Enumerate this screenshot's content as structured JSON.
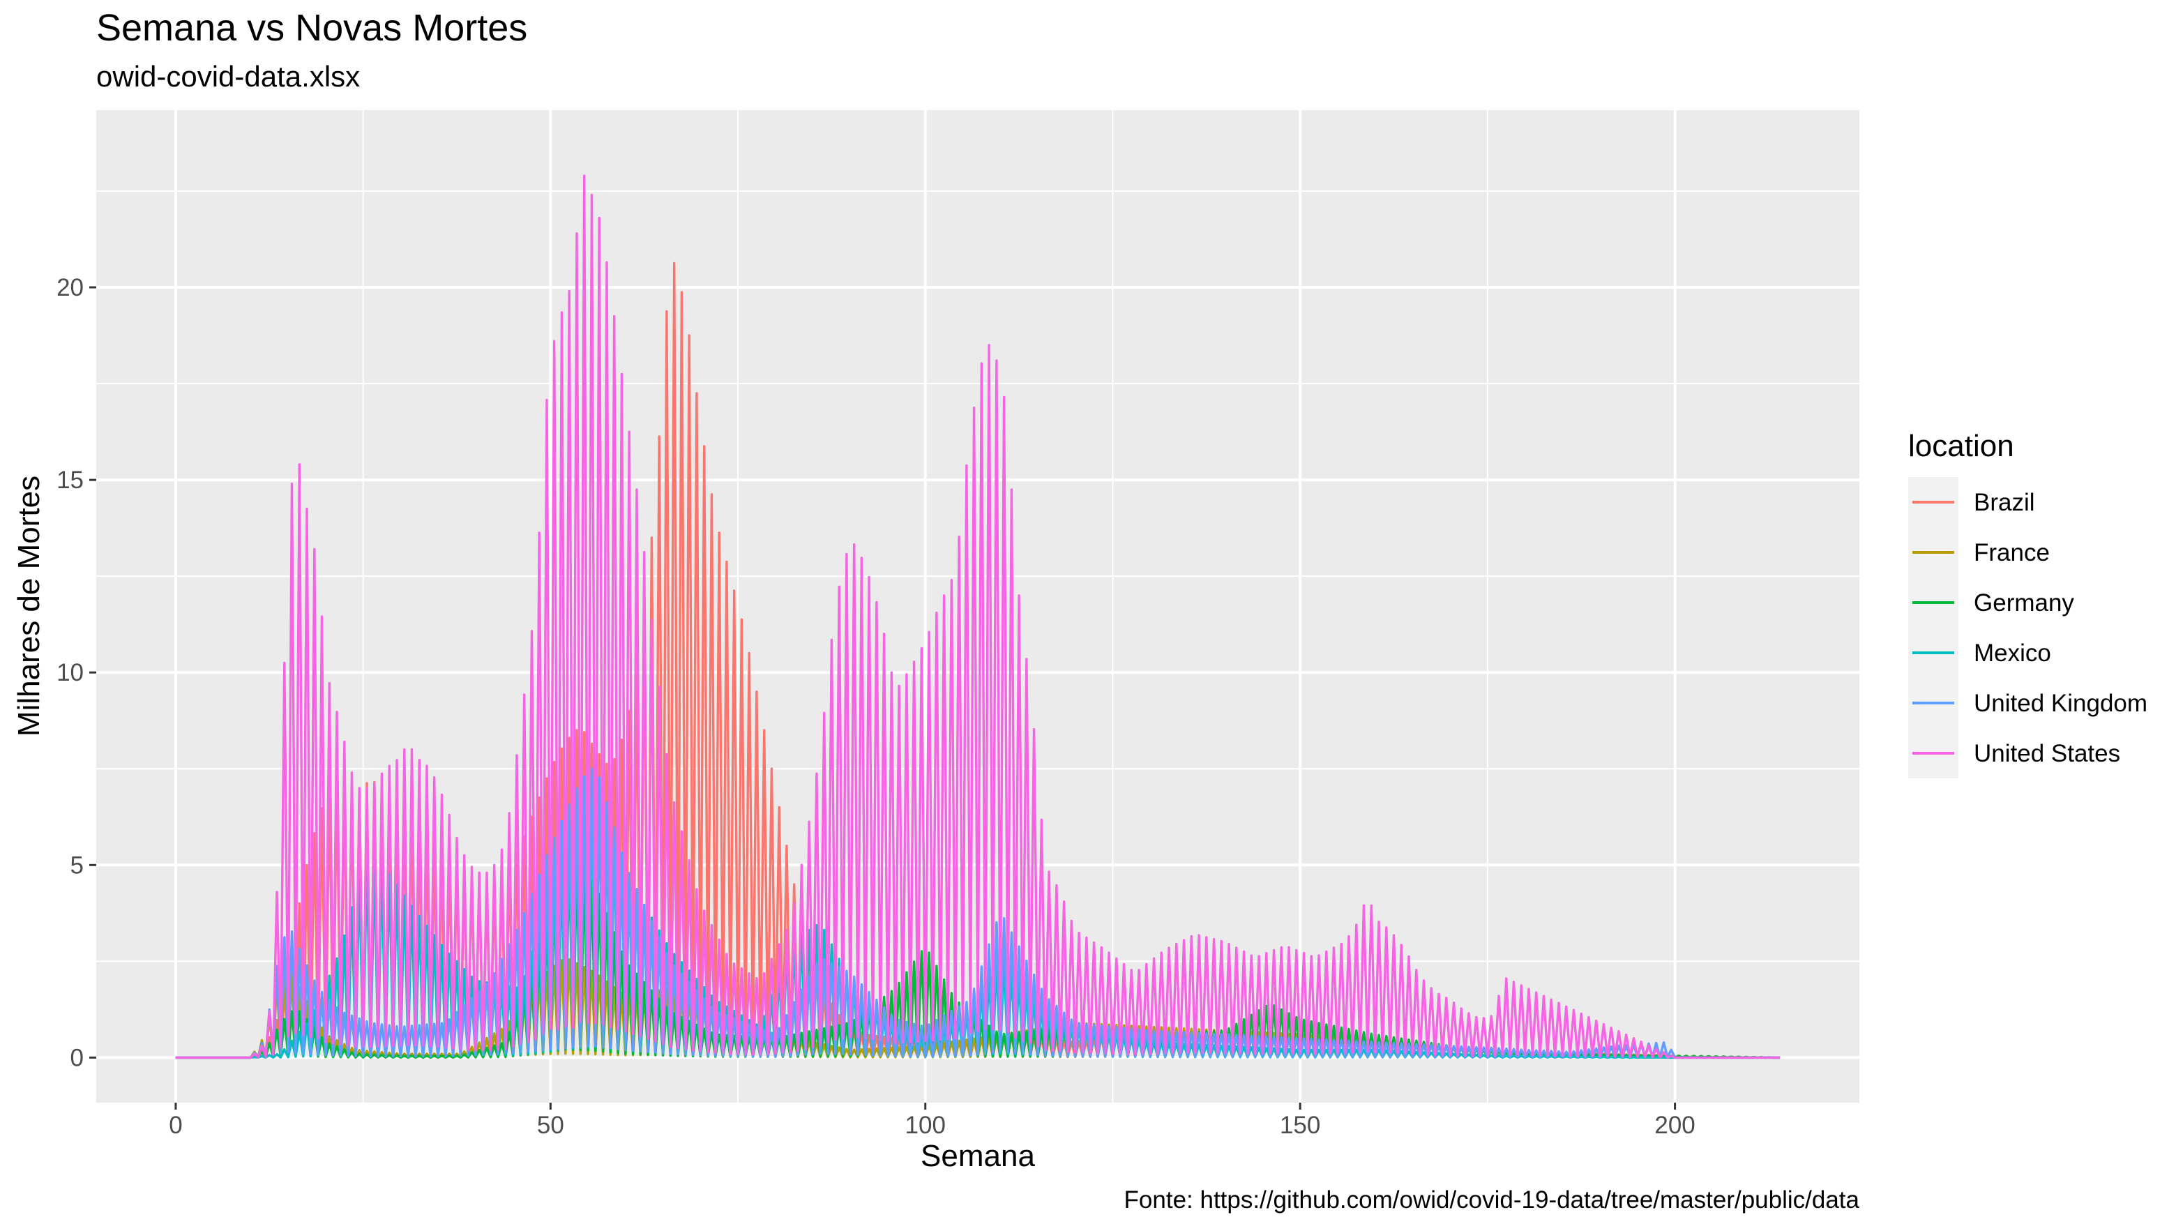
{
  "chart_data": {
    "type": "line",
    "title": "Semana vs Novas Mortes",
    "subtitle": "owid-covid-data.xlsx",
    "xlabel": "Semana",
    "ylabel": "Milhares de Mortes",
    "caption": "Fonte: https://github.com/owid/covid-19-data/tree/master/public/data",
    "xlim": [
      -10.6,
      224.6
    ],
    "ylim": [
      -1.17,
      24.6
    ],
    "x_ticks": [
      0,
      50,
      100,
      150,
      200
    ],
    "y_ticks": [
      0,
      5,
      10,
      15,
      20
    ],
    "x_tick_labels": [
      "0",
      "50",
      "100",
      "150",
      "200"
    ],
    "y_tick_labels": [
      "0",
      "5",
      "10",
      "15",
      "20"
    ],
    "grid": true,
    "legend": {
      "title": "location",
      "position": "right"
    },
    "sample_points_per_week": 2,
    "series": [
      {
        "name": "Brazil",
        "color": "#F8766D",
        "x": [
          0,
          10,
          12,
          14,
          16,
          18,
          20,
          22,
          24,
          26,
          28,
          30,
          32,
          34,
          36,
          38,
          40,
          42,
          44,
          46,
          48,
          50,
          52,
          54,
          56,
          58,
          60,
          62,
          64,
          66,
          68,
          70,
          72,
          74,
          76,
          78,
          80,
          82,
          84,
          86,
          88,
          90,
          92,
          96,
          100,
          104,
          108,
          112,
          120,
          130,
          140,
          150,
          160,
          170,
          180,
          190,
          200,
          214
        ],
        "peaks": [
          0,
          0,
          0.3,
          1.2,
          3.5,
          5.5,
          6.8,
          7.1,
          6.9,
          7.2,
          7.0,
          6.5,
          6.0,
          5.4,
          5.0,
          4.8,
          4.6,
          4.3,
          4.8,
          5.5,
          6.5,
          7.5,
          8.2,
          8.6,
          8.0,
          7.5,
          8.5,
          10.5,
          14.5,
          21.0,
          19.5,
          16.5,
          14.0,
          12.5,
          11.0,
          9.0,
          7.0,
          5.0,
          3.0,
          2.0,
          1.2,
          0.8,
          0.6,
          0.5,
          0.5,
          0.4,
          0.5,
          0.6,
          0.4,
          0.8,
          0.6,
          0.5,
          0.6,
          0.3,
          0.15,
          0.1,
          0.05,
          0
        ]
      },
      {
        "name": "France",
        "color": "#B79F00",
        "x": [
          0,
          10,
          12,
          14,
          16,
          18,
          20,
          24,
          30,
          38,
          44,
          48,
          52,
          56,
          60,
          66,
          72,
          80,
          90,
          100,
          110,
          120,
          130,
          140,
          150,
          160,
          170,
          180,
          200,
          214
        ],
        "peaks": [
          0,
          0,
          0.6,
          2.4,
          2.0,
          1.3,
          0.6,
          0.2,
          0.1,
          0.1,
          0.8,
          2.0,
          2.6,
          2.2,
          1.6,
          1.8,
          1.3,
          0.6,
          0.2,
          0.3,
          0.6,
          0.9,
          0.8,
          0.7,
          0.6,
          0.4,
          0.3,
          0.1,
          0.05,
          0
        ]
      },
      {
        "name": "Germany",
        "color": "#00BA38",
        "x": [
          0,
          10,
          12,
          14,
          16,
          18,
          20,
          24,
          30,
          38,
          44,
          48,
          52,
          56,
          60,
          66,
          72,
          80,
          90,
          96,
          100,
          104,
          110,
          120,
          130,
          140,
          146,
          150,
          160,
          170,
          180,
          200,
          214
        ],
        "peaks": [
          0,
          0,
          0.2,
          0.9,
          1.3,
          0.9,
          0.4,
          0.1,
          0.05,
          0.05,
          0.4,
          2.5,
          5.3,
          4.5,
          2.5,
          1.2,
          0.6,
          0.5,
          0.9,
          1.8,
          2.9,
          1.5,
          0.6,
          0.8,
          0.6,
          0.7,
          1.4,
          1.0,
          0.6,
          0.3,
          0.1,
          0.05,
          0
        ]
      },
      {
        "name": "Mexico",
        "color": "#00BFC4",
        "x": [
          0,
          10,
          14,
          18,
          22,
          25,
          28,
          32,
          36,
          40,
          46,
          52,
          56,
          60,
          66,
          72,
          78,
          82,
          86,
          90,
          96,
          100,
          106,
          110,
          116,
          120,
          130,
          140,
          150,
          160,
          170,
          176,
          200,
          214
        ],
        "peaks": [
          0,
          0,
          0.1,
          1.0,
          2.8,
          5.0,
          4.9,
          3.8,
          2.8,
          2.0,
          1.8,
          5.6,
          7.0,
          4.8,
          2.8,
          1.5,
          0.8,
          3.0,
          3.5,
          2.0,
          0.8,
          0.5,
          1.2,
          2.6,
          1.2,
          0.8,
          0.4,
          0.3,
          0.2,
          0.2,
          0.1,
          0.05,
          0,
          0
        ]
      },
      {
        "name": "United Kingdom",
        "color": "#619CFF",
        "x": [
          0,
          10,
          12,
          13,
          15,
          17,
          19,
          22,
          26,
          30,
          36,
          42,
          46,
          50,
          54,
          56,
          60,
          66,
          72,
          80,
          86,
          90,
          96,
          100,
          106,
          110,
          116,
          120,
          130,
          140,
          150,
          160,
          170,
          176,
          180,
          186,
          192,
          199,
          200,
          214
        ],
        "peaks": [
          0,
          0,
          0.5,
          2.0,
          3.5,
          2.6,
          1.8,
          1.2,
          0.9,
          0.8,
          0.9,
          2.0,
          3.5,
          5.5,
          7.2,
          7.6,
          5.0,
          2.5,
          1.2,
          0.6,
          2.6,
          2.2,
          1.0,
          0.8,
          1.5,
          3.8,
          1.6,
          0.9,
          0.7,
          0.6,
          0.5,
          0.4,
          0.3,
          0.25,
          0.2,
          0.15,
          0.3,
          0.4,
          0,
          0
        ]
      },
      {
        "name": "United States",
        "color": "#F564E3",
        "x": [
          0,
          10,
          12,
          13,
          14,
          15,
          16,
          17,
          18,
          19,
          20,
          22,
          24,
          26,
          28,
          30,
          31,
          32,
          34,
          36,
          38,
          40,
          42,
          44,
          46,
          48,
          50,
          51,
          52,
          53,
          54,
          55,
          56,
          57,
          58,
          60,
          62,
          64,
          66,
          70,
          74,
          78,
          82,
          84,
          86,
          88,
          90,
          92,
          94,
          96,
          98,
          100,
          102,
          104,
          106,
          108,
          109,
          110,
          111,
          112,
          113,
          114,
          116,
          118,
          120,
          124,
          128,
          132,
          136,
          140,
          144,
          148,
          152,
          156,
          158,
          159,
          160,
          162,
          164,
          166,
          168,
          170,
          172,
          174,
          176,
          177,
          200,
          214
        ],
        "peaks": [
          0,
          0,
          0.4,
          2.0,
          6.6,
          13.9,
          15.9,
          14.9,
          13.6,
          12.8,
          10.1,
          8.6,
          7.0,
          7.0,
          7.5,
          7.8,
          8.2,
          7.8,
          7.5,
          6.6,
          5.4,
          4.8,
          4.8,
          5.6,
          8.6,
          11.9,
          18.8,
          18.4,
          20.3,
          19.5,
          23.3,
          22.5,
          22.3,
          21.3,
          20.0,
          17.0,
          14.0,
          10.5,
          7.0,
          4.0,
          2.5,
          2.0,
          3.5,
          5.5,
          8.0,
          11.8,
          13.5,
          12.8,
          11.5,
          9.5,
          10.1,
          10.8,
          11.8,
          12.6,
          16.3,
          18.6,
          18.4,
          17.8,
          16.5,
          13.0,
          11.0,
          9.7,
          5.0,
          4.3,
          3.3,
          2.8,
          2.2,
          2.8,
          3.2,
          3.0,
          2.6,
          2.9,
          2.6,
          3.0,
          3.6,
          4.3,
          3.6,
          3.3,
          2.8,
          2.1,
          1.7,
          1.5,
          1.2,
          1.0,
          1.1,
          2.1,
          0,
          0
        ]
      }
    ]
  }
}
